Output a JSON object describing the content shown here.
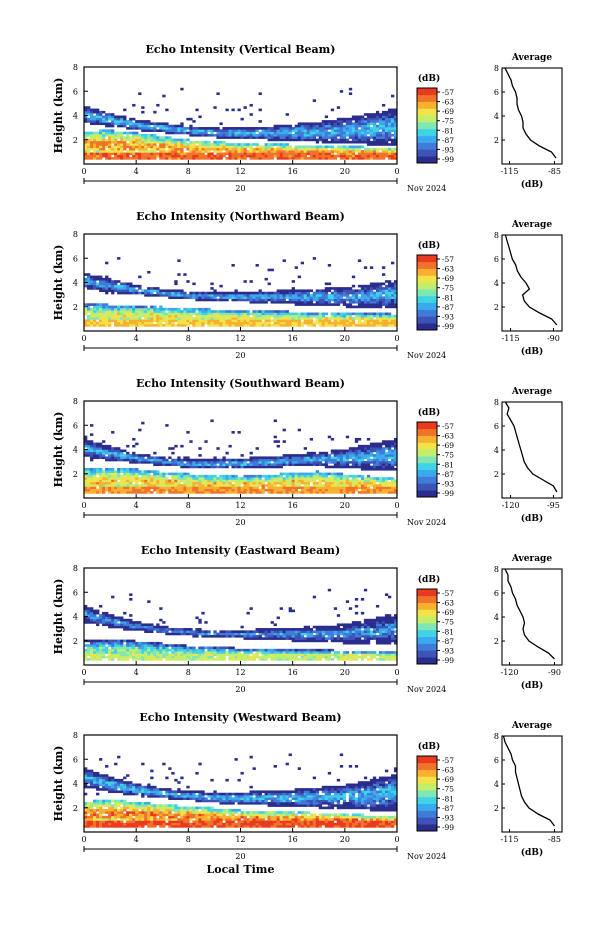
{
  "figure": {
    "xlabel": "Local Time",
    "date_day": "20",
    "date_month_year": "Nov 2024",
    "ylabel": "Height (km)",
    "colorbar_unit": "(dB)",
    "colorbar_ticks": [
      "-57",
      "-63",
      "-69",
      "-75",
      "-81",
      "-87",
      "-93",
      "-99"
    ],
    "avg_title": "Average",
    "avg_xlabel": "(dB)"
  },
  "colors": {
    "colormap": [
      "#2b2d8c",
      "#3d53b8",
      "#3f7bd9",
      "#3aa9ee",
      "#3fd3e6",
      "#7fe7b3",
      "#c2ee6c",
      "#f2e34b",
      "#f8b02e",
      "#f1722a",
      "#e83a1f"
    ],
    "line": "#000000"
  },
  "chart_data": [
    {
      "type": "heatmap",
      "title": "Echo Intensity (Vertical Beam)",
      "x_ticks": [
        "0",
        "4",
        "8",
        "12",
        "16",
        "20",
        "0"
      ],
      "y_ticks": [
        "2",
        "4",
        "6",
        "8"
      ],
      "xlim": [
        0,
        24
      ],
      "ylim": [
        0,
        8
      ],
      "zlim": [
        -99,
        -57
      ],
      "layers": [
        {
          "x": [
            0,
            2,
            4,
            6,
            8,
            10,
            12,
            14,
            16,
            18,
            20,
            22,
            24
          ],
          "bottom": [
            0.4,
            0.4,
            0.4,
            0.4,
            0.4,
            0.4,
            0.4,
            0.4,
            0.4,
            0.4,
            0.4,
            0.4,
            0.4
          ],
          "top": [
            2.7,
            2.8,
            2.6,
            2.3,
            2.0,
            1.9,
            1.7,
            1.7,
            1.6,
            1.5,
            1.5,
            1.4,
            1.4
          ],
          "core": -66
        },
        {
          "x": [
            0,
            2,
            4,
            6,
            8,
            10,
            12,
            14,
            16,
            18,
            20,
            22,
            24
          ],
          "bottom": [
            3.4,
            3.1,
            2.8,
            2.6,
            2.4,
            2.2,
            2.1,
            2.0,
            1.9,
            1.8,
            1.7,
            1.6,
            1.6
          ],
          "top": [
            4.8,
            4.2,
            3.7,
            3.4,
            3.1,
            3.0,
            3.0,
            3.1,
            3.3,
            3.5,
            3.8,
            4.2,
            4.6
          ],
          "core": -85
        }
      ],
      "avg_profile": {
        "x_ticks": [
          "-115",
          "-85"
        ],
        "xlim": [
          -120,
          -80
        ],
        "y_ticks": [
          "2",
          "4",
          "6",
          "8"
        ],
        "ylim": [
          0,
          8
        ],
        "height": [
          0.5,
          1.0,
          1.5,
          2.0,
          2.5,
          3.0,
          3.5,
          4.0,
          4.5,
          5.0,
          5.5,
          6.0,
          6.5,
          7.0,
          7.5,
          8.0
        ],
        "value": [
          -84,
          -87,
          -95,
          -101,
          -104,
          -106,
          -106,
          -107,
          -109,
          -110,
          -110,
          -111,
          -113,
          -114,
          -116,
          -118
        ]
      }
    },
    {
      "type": "heatmap",
      "title": "Echo Intensity (Northward Beam)",
      "x_ticks": [
        "0",
        "4",
        "8",
        "12",
        "16",
        "20",
        "0"
      ],
      "y_ticks": [
        "2",
        "4",
        "6",
        "8"
      ],
      "xlim": [
        0,
        24
      ],
      "ylim": [
        0,
        8
      ],
      "zlim": [
        -99,
        -57
      ],
      "layers": [
        {
          "x": [
            0,
            2,
            4,
            6,
            8,
            10,
            12,
            14,
            16,
            18,
            20,
            22,
            24
          ],
          "bottom": [
            0.4,
            0.4,
            0.4,
            0.4,
            0.4,
            0.4,
            0.4,
            0.4,
            0.4,
            0.4,
            0.4,
            0.4,
            0.4
          ],
          "top": [
            2.2,
            2.2,
            2.1,
            2.0,
            1.9,
            1.8,
            1.7,
            1.7,
            1.6,
            1.6,
            1.5,
            1.5,
            1.4
          ],
          "core": -72
        },
        {
          "x": [
            0,
            2,
            4,
            6,
            8,
            10,
            12,
            14,
            16,
            18,
            20,
            22,
            24
          ],
          "bottom": [
            3.5,
            3.2,
            3.0,
            2.8,
            2.6,
            2.5,
            2.4,
            2.3,
            2.2,
            2.1,
            2.0,
            1.9,
            1.9
          ],
          "top": [
            4.8,
            4.3,
            3.8,
            3.5,
            3.3,
            3.2,
            3.2,
            3.3,
            3.4,
            3.5,
            3.6,
            3.9,
            4.3
          ],
          "core": -86
        }
      ],
      "avg_profile": {
        "x_ticks": [
          "-115",
          "-90"
        ],
        "xlim": [
          -120,
          -85
        ],
        "y_ticks": [
          "2",
          "4",
          "6",
          "8"
        ],
        "ylim": [
          0,
          8
        ],
        "height": [
          0.5,
          1.0,
          1.5,
          2.0,
          2.5,
          3.0,
          3.5,
          4.0,
          4.5,
          5.0,
          5.5,
          6.0,
          6.5,
          7.0,
          7.5,
          8.0
        ],
        "value": [
          -88,
          -91,
          -98,
          -104,
          -107,
          -108,
          -104,
          -106,
          -109,
          -111,
          -112,
          -114,
          -115,
          -116,
          -117,
          -118
        ]
      }
    },
    {
      "type": "heatmap",
      "title": "Echo Intensity (Southward Beam)",
      "x_ticks": [
        "0",
        "4",
        "8",
        "12",
        "16",
        "20",
        "0"
      ],
      "y_ticks": [
        "2",
        "4",
        "6",
        "8"
      ],
      "xlim": [
        0,
        24
      ],
      "ylim": [
        0,
        8
      ],
      "zlim": [
        -99,
        -57
      ],
      "layers": [
        {
          "x": [
            0,
            2,
            4,
            6,
            8,
            10,
            12,
            14,
            16,
            18,
            20,
            22,
            24
          ],
          "bottom": [
            0.4,
            0.4,
            0.4,
            0.4,
            0.4,
            0.4,
            0.4,
            0.4,
            0.4,
            0.4,
            0.4,
            0.4,
            0.4
          ],
          "top": [
            2.4,
            2.5,
            2.4,
            2.2,
            2.0,
            1.9,
            1.8,
            1.9,
            2.1,
            2.2,
            2.0,
            1.8,
            1.6
          ],
          "core": -69
        },
        {
          "x": [
            0,
            2,
            4,
            6,
            8,
            10,
            12,
            14,
            16,
            18,
            20,
            22,
            24
          ],
          "bottom": [
            3.4,
            3.1,
            2.9,
            2.7,
            2.5,
            2.4,
            2.4,
            2.5,
            2.6,
            2.6,
            2.5,
            2.3,
            2.2
          ],
          "top": [
            4.9,
            4.3,
            3.7,
            3.4,
            3.2,
            3.2,
            3.3,
            3.4,
            3.6,
            3.8,
            4.1,
            4.5,
            4.9
          ],
          "core": -86
        }
      ],
      "avg_profile": {
        "x_ticks": [
          "-120",
          "-95"
        ],
        "xlim": [
          -125,
          -90
        ],
        "y_ticks": [
          "2",
          "4",
          "6",
          "8"
        ],
        "ylim": [
          0,
          8
        ],
        "height": [
          0.5,
          1.0,
          1.5,
          2.0,
          2.5,
          3.0,
          3.5,
          4.0,
          4.5,
          5.0,
          5.5,
          6.0,
          6.5,
          7.0,
          7.5,
          8.0
        ],
        "value": [
          -93,
          -95,
          -101,
          -107,
          -110,
          -112,
          -113,
          -114,
          -115,
          -116,
          -117,
          -118,
          -120,
          -122,
          -121,
          -123
        ]
      }
    },
    {
      "type": "heatmap",
      "title": "Echo Intensity (Eastward Beam)",
      "x_ticks": [
        "0",
        "4",
        "8",
        "12",
        "16",
        "20",
        "0"
      ],
      "y_ticks": [
        "2",
        "4",
        "6",
        "8"
      ],
      "xlim": [
        0,
        24
      ],
      "ylim": [
        0,
        8
      ],
      "zlim": [
        -99,
        -57
      ],
      "layers": [
        {
          "x": [
            0,
            2,
            4,
            6,
            8,
            10,
            12,
            14,
            16,
            18,
            20,
            22,
            24
          ],
          "bottom": [
            0.4,
            0.4,
            0.4,
            0.4,
            0.4,
            0.4,
            0.4,
            0.4,
            0.4,
            0.4,
            0.4,
            0.4,
            0.4
          ],
          "top": [
            2.0,
            2.1,
            2.0,
            1.8,
            1.6,
            1.5,
            1.4,
            1.4,
            1.3,
            1.3,
            1.2,
            1.2,
            1.2
          ],
          "core": -78
        },
        {
          "x": [
            0,
            2,
            4,
            6,
            8,
            10,
            12,
            14,
            16,
            18,
            20,
            22,
            24
          ],
          "bottom": [
            3.5,
            3.1,
            2.8,
            2.6,
            2.4,
            2.3,
            2.2,
            2.1,
            2.0,
            1.9,
            1.8,
            1.7,
            1.7
          ],
          "top": [
            4.9,
            4.2,
            3.6,
            3.2,
            3.0,
            2.9,
            2.9,
            3.0,
            3.1,
            3.2,
            3.4,
            3.8,
            4.3
          ],
          "core": -88
        }
      ],
      "avg_profile": {
        "x_ticks": [
          "-120",
          "-90"
        ],
        "xlim": [
          -125,
          -85
        ],
        "y_ticks": [
          "2",
          "4",
          "6",
          "8"
        ],
        "ylim": [
          0,
          8
        ],
        "height": [
          0.5,
          1.0,
          1.5,
          2.0,
          2.5,
          3.0,
          3.5,
          4.0,
          4.5,
          5.0,
          5.5,
          6.0,
          6.5,
          7.0,
          7.5,
          8.0
        ],
        "value": [
          -90,
          -94,
          -101,
          -107,
          -110,
          -111,
          -110,
          -111,
          -113,
          -115,
          -116,
          -118,
          -119,
          -121,
          -121,
          -123
        ]
      }
    },
    {
      "type": "heatmap",
      "title": "Echo Intensity (Westward Beam)",
      "x_ticks": [
        "0",
        "4",
        "8",
        "12",
        "16",
        "20",
        "0"
      ],
      "y_ticks": [
        "2",
        "4",
        "6",
        "8"
      ],
      "xlim": [
        0,
        24
      ],
      "ylim": [
        0,
        8
      ],
      "zlim": [
        -99,
        -57
      ],
      "layers": [
        {
          "x": [
            0,
            2,
            4,
            6,
            8,
            10,
            12,
            14,
            16,
            18,
            20,
            22,
            24
          ],
          "bottom": [
            0.4,
            0.4,
            0.4,
            0.4,
            0.4,
            0.4,
            0.4,
            0.4,
            0.4,
            0.4,
            0.4,
            0.4,
            0.4
          ],
          "top": [
            2.5,
            2.7,
            2.5,
            2.3,
            2.1,
            2.0,
            1.8,
            1.7,
            1.7,
            1.6,
            1.5,
            1.4,
            1.3
          ],
          "core": -64
        },
        {
          "x": [
            0,
            2,
            4,
            6,
            8,
            10,
            12,
            14,
            16,
            18,
            20,
            22,
            24
          ],
          "bottom": [
            3.7,
            3.3,
            3.0,
            2.8,
            2.6,
            2.4,
            2.3,
            2.2,
            2.1,
            2.0,
            1.9,
            1.8,
            1.8
          ],
          "top": [
            5.3,
            4.6,
            4.0,
            3.6,
            3.4,
            3.3,
            3.3,
            3.4,
            3.5,
            3.7,
            3.9,
            4.3,
            4.8
          ],
          "core": -85
        }
      ],
      "avg_profile": {
        "x_ticks": [
          "-115",
          "-85"
        ],
        "xlim": [
          -120,
          -80
        ],
        "y_ticks": [
          "2",
          "4",
          "6",
          "8"
        ],
        "ylim": [
          0,
          8
        ],
        "height": [
          0.5,
          1.0,
          1.5,
          2.0,
          2.5,
          3.0,
          3.5,
          4.0,
          4.5,
          5.0,
          5.5,
          6.0,
          6.5,
          7.0,
          7.5,
          8.0
        ],
        "value": [
          -85,
          -88,
          -96,
          -102,
          -105,
          -107,
          -108,
          -109,
          -110,
          -111,
          -111,
          -113,
          -114,
          -116,
          -118,
          -119
        ]
      }
    }
  ]
}
